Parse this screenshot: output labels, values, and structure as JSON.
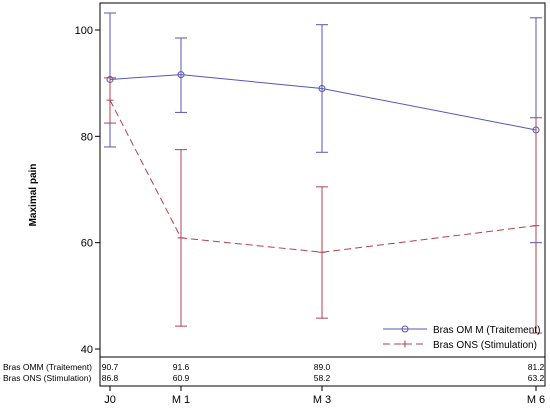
{
  "chart_data": {
    "type": "line",
    "title": "",
    "xlabel": "",
    "ylabel": "Maximal pain",
    "categories": [
      "J0",
      "M 1",
      "M 3",
      "M 6"
    ],
    "ylim": [
      40,
      104
    ],
    "yticks": [
      40,
      60,
      80,
      100
    ],
    "grid": false,
    "legend_position": "bottom-right",
    "series": [
      {
        "name": "Bras OM M (Traitement)",
        "table_label": "Bras OMM (Traitement)",
        "color": "#5555bb",
        "line_style": "solid",
        "marker": "circle",
        "values": [
          90.7,
          91.6,
          89.0,
          81.2
        ],
        "value_labels": [
          "90.7",
          "91.6",
          "89.0",
          "81.2"
        ],
        "lower": [
          78.0,
          84.5,
          77.0,
          60.0
        ],
        "upper": [
          103.2,
          98.5,
          101.0,
          102.3
        ]
      },
      {
        "name": "Bras ONS (Stimulation)",
        "table_label": "Bras ONS (Stimulation)",
        "color": "#b04050",
        "line_style": "dashed",
        "marker": "plus",
        "values": [
          86.8,
          60.9,
          58.2,
          63.2
        ],
        "value_labels": [
          "86.8",
          "60.9",
          "58.2",
          "63.2"
        ],
        "lower": [
          82.5,
          44.3,
          45.8,
          43.0
        ],
        "upper": [
          91.0,
          77.5,
          70.5,
          83.5
        ]
      }
    ]
  }
}
